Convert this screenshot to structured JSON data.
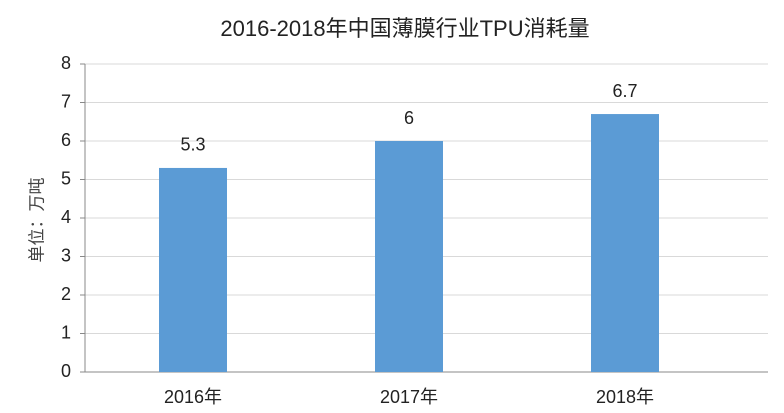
{
  "chart_data": {
    "type": "bar",
    "title": "2016-2018年中国薄膜行业TPU消耗量",
    "y_label": "单位：万吨",
    "categories": [
      "2016年",
      "2017年",
      "2018年"
    ],
    "values": [
      5.3,
      6,
      6.7
    ],
    "color": "#5b9bd5",
    "ylim": [
      0,
      8
    ],
    "yticks": [
      0,
      1,
      2,
      3,
      4,
      5,
      6,
      7,
      8
    ],
    "grid": true
  }
}
